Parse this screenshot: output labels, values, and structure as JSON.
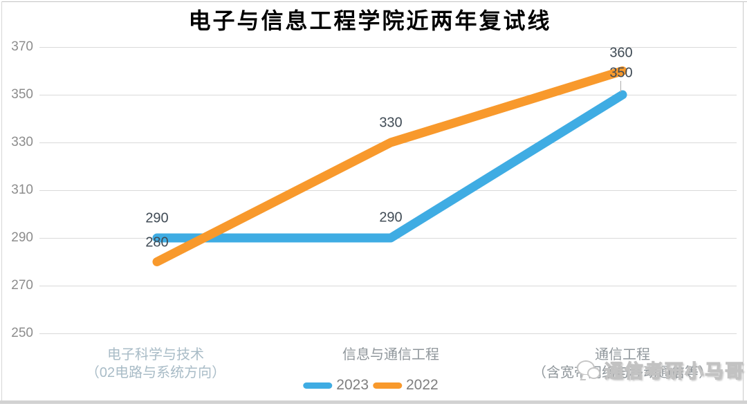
{
  "title": "电子与信息工程学院近两年复试线",
  "chart_data": {
    "type": "line",
    "categories": [
      "电子科学与技术（02电路与系统方向）",
      "信息与通信工程",
      "通信工程（含宽带网络与移动通信等）"
    ],
    "x_labels": [
      {
        "line1": "电子科学与技术",
        "line2": "（02电路与系统方向）"
      },
      {
        "line1": "信息与通信工程",
        "line2": ""
      },
      {
        "line1": "通信工程",
        "line2": "（含宽带网络与移动通信等）"
      }
    ],
    "series": [
      {
        "name": "2023",
        "color": "#3FACE3",
        "values": [
          290,
          290,
          350
        ]
      },
      {
        "name": "2022",
        "color": "#F8992C",
        "values": [
          280,
          330,
          360
        ]
      }
    ],
    "y_ticks": [
      370,
      350,
      330,
      310,
      290,
      270,
      250
    ],
    "ylim": [
      250,
      370
    ],
    "grid": "horizontal",
    "legend_position": "bottom",
    "xlabel": "",
    "ylabel": ""
  },
  "watermark": {
    "text": "通信考研小马哥",
    "icon": "wechat-icon"
  }
}
